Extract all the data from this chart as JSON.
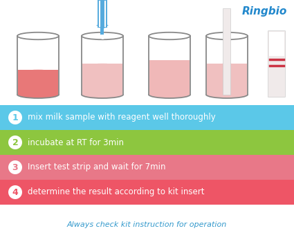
{
  "bg_color": "#ffffff",
  "ringbio_color": "#2288cc",
  "ringbio_text": "Ringbio",
  "steps": [
    {
      "num": "1",
      "text": "mix milk sample with reagent well thoroughly",
      "bg": "#5bc8e8",
      "circle_bg": "#ffffff",
      "text_color": "#ffffff",
      "num_color": "#5bc8e8"
    },
    {
      "num": "2",
      "text": "incubate at RT for 3min",
      "bg": "#8dc63f",
      "circle_bg": "#ffffff",
      "text_color": "#ffffff",
      "num_color": "#8dc63f"
    },
    {
      "num": "3",
      "text": "Insert test strip and wait for 7min",
      "bg": "#e87888",
      "circle_bg": "#ffffff",
      "text_color": "#ffffff",
      "num_color": "#e87888"
    },
    {
      "num": "4",
      "text": "determine the result according to kit insert",
      "bg": "#ee5566",
      "circle_bg": "#ffffff",
      "text_color": "#ffffff",
      "num_color": "#ee5566"
    }
  ],
  "footer_text": "Always check kit instruction for operation",
  "footer_color": "#3399cc",
  "syringe_color": "#55aadd",
  "strip_line_color": "#cc3344",
  "jar_edge_color": "#888888",
  "jar1_fill": "#e87878",
  "jar2_fill": "#f0c0c0",
  "jar3_fill": "#f0b8b8",
  "jar4_fill": "#f0c0c0",
  "strip_body_color": "#eeeeee",
  "strip_top_color": "#dddddd"
}
